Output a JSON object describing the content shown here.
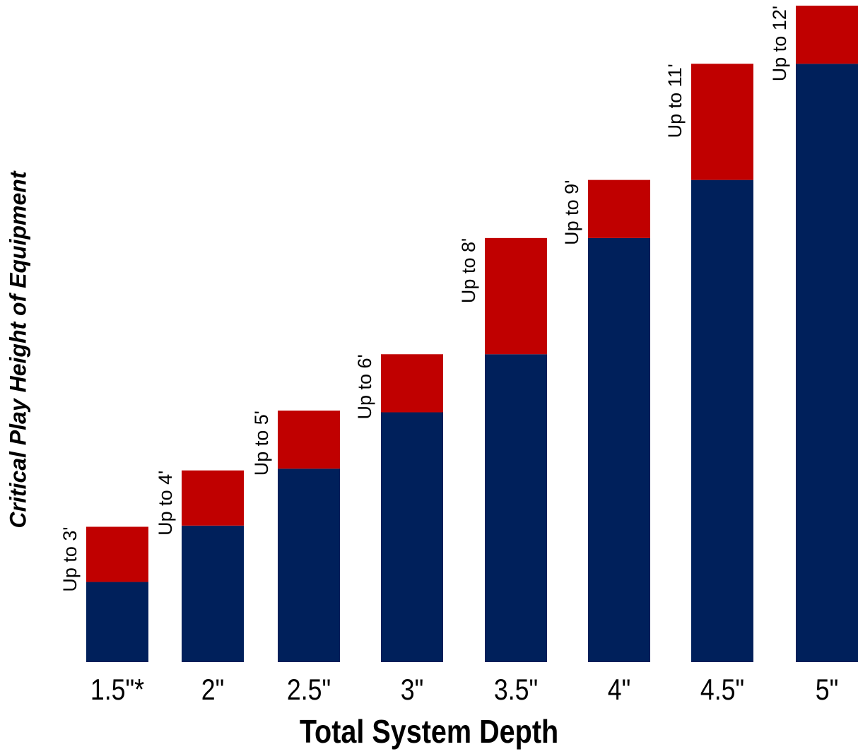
{
  "chart_data": {
    "type": "bar",
    "title": "",
    "xlabel": "Total System Depth",
    "ylabel": "Critical Play Height of Equipment",
    "categories": [
      "1.5\"*",
      "2\"",
      "2.5\"",
      "3\"",
      "3.5\"",
      "4\"",
      "4.5\"",
      "5\""
    ],
    "series": [
      {
        "values": [
          1.38,
          2.35,
          3.33,
          4.3,
          5.3,
          7.3,
          8.3,
          10.3
        ]
      },
      {
        "values": [
          0.95,
          0.95,
          1.0,
          1.0,
          2.0,
          1.0,
          2.0,
          1.0
        ]
      }
    ],
    "annotations": [
      "Up to 3'",
      "Up to 4'",
      "Up to 5'",
      "Up to 6'",
      "Up to 8'",
      "Up to 9'",
      "Up to 11'",
      "Up to 12'"
    ],
    "ylim": [
      0,
      11.3
    ],
    "grid": false,
    "legend": "none",
    "colors": {
      "base": "#00205b",
      "top": "#c00000",
      "text": "#000000"
    }
  }
}
